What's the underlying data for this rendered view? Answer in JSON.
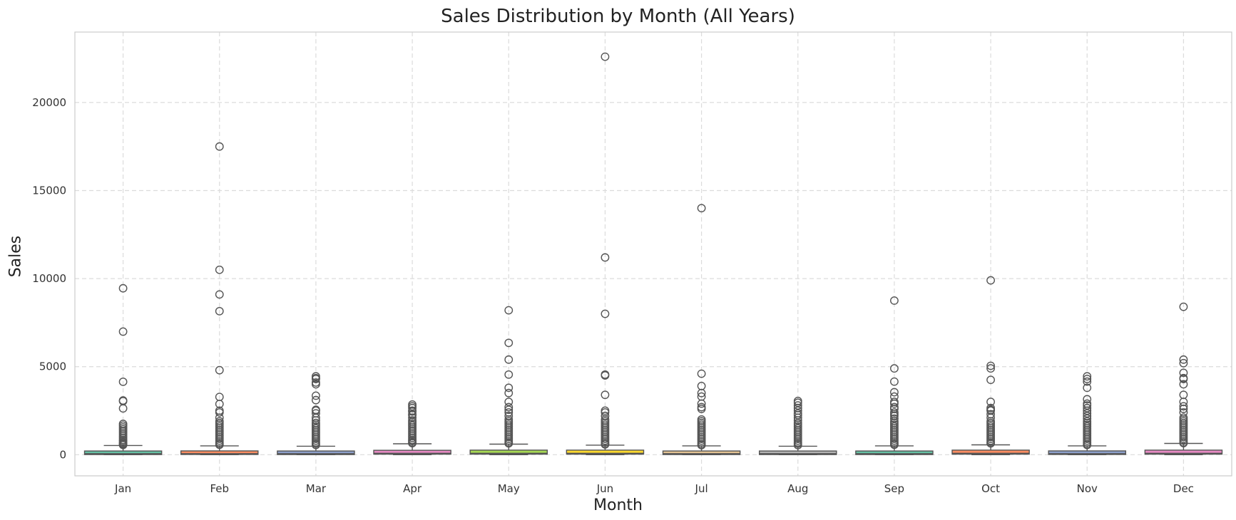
{
  "chart_data": {
    "type": "box",
    "title": "Sales Distribution by Month (All Years)",
    "xlabel": "Month",
    "ylabel": "Sales",
    "ylim": [
      -1200,
      24000
    ],
    "yticks": [
      0,
      5000,
      10000,
      15000,
      20000
    ],
    "grid": true,
    "categories": [
      "Jan",
      "Feb",
      "Mar",
      "Apr",
      "May",
      "Jun",
      "Jul",
      "Aug",
      "Sep",
      "Oct",
      "Nov",
      "Dec"
    ],
    "colors": [
      "#66c2a5",
      "#fc8d62",
      "#8da0cb",
      "#e78ac3",
      "#a6d854",
      "#ffd92f",
      "#e5c494",
      "#b3b3b3",
      "#66c2a5",
      "#fc8d62",
      "#8da0cb",
      "#e78ac3"
    ],
    "boxes": [
      {
        "q1": 20,
        "median": 60,
        "q3": 200,
        "whisker_low": 0,
        "whisker_high": 520,
        "outliers": [
          9450,
          6990,
          4140,
          3080,
          3040,
          2630,
          1750,
          1650,
          1550,
          1450,
          1350,
          1250,
          1150,
          1050,
          950,
          850,
          780,
          700,
          640,
          590,
          550
        ]
      },
      {
        "q1": 20,
        "median": 60,
        "q3": 210,
        "whisker_low": 0,
        "whisker_high": 500,
        "outliers": [
          17500,
          10500,
          9100,
          8150,
          4800,
          3280,
          2880,
          2500,
          2400,
          2100,
          1900,
          1800,
          1700,
          1600,
          1500,
          1400,
          1300,
          1200,
          1100,
          1000,
          900,
          800,
          700,
          620,
          560
        ]
      },
      {
        "q1": 20,
        "median": 60,
        "q3": 200,
        "whisker_low": 0,
        "whisker_high": 480,
        "outliers": [
          4450,
          4350,
          4300,
          4100,
          4000,
          3350,
          3100,
          2550,
          2500,
          2350,
          2100,
          1950,
          1800,
          1700,
          1600,
          1500,
          1400,
          1300,
          1200,
          1100,
          1000,
          900,
          800,
          700,
          620,
          550
        ]
      },
      {
        "q1": 30,
        "median": 80,
        "q3": 250,
        "whisker_low": 0,
        "whisker_high": 620,
        "outliers": [
          2850,
          2750,
          2650,
          2500,
          2450,
          2300,
          2250,
          2100,
          1950,
          1850,
          1750,
          1650,
          1550,
          1450,
          1350,
          1250,
          1150,
          1050,
          950,
          850,
          780,
          700,
          650
        ]
      },
      {
        "q1": 30,
        "median": 80,
        "q3": 260,
        "whisker_low": 0,
        "whisker_high": 600,
        "outliers": [
          8200,
          6350,
          5400,
          4550,
          3800,
          3500,
          3000,
          2700,
          2550,
          2400,
          2200,
          2000,
          1900,
          1800,
          1700,
          1600,
          1500,
          1400,
          1300,
          1200,
          1100,
          1000,
          900,
          800,
          700,
          640
        ]
      },
      {
        "q1": 30,
        "median": 80,
        "q3": 260,
        "whisker_low": 0,
        "whisker_high": 540,
        "outliers": [
          22600,
          11200,
          8000,
          4550,
          4500,
          3400,
          2500,
          2400,
          2200,
          2000,
          1900,
          1800,
          1700,
          1600,
          1500,
          1400,
          1300,
          1200,
          1100,
          1000,
          900,
          800,
          700,
          620,
          580
        ]
      },
      {
        "q1": 20,
        "median": 60,
        "q3": 200,
        "whisker_low": 0,
        "whisker_high": 500,
        "outliers": [
          14000,
          4600,
          3900,
          3500,
          3300,
          2900,
          2700,
          2600,
          2000,
          1900,
          1800,
          1700,
          1600,
          1500,
          1400,
          1300,
          1200,
          1100,
          1000,
          900,
          800,
          700,
          600,
          540
        ]
      },
      {
        "q1": 20,
        "median": 60,
        "q3": 200,
        "whisker_low": 0,
        "whisker_high": 480,
        "outliers": [
          3050,
          2950,
          2800,
          2650,
          2500,
          2350,
          2250,
          2100,
          1950,
          1800,
          1700,
          1600,
          1500,
          1400,
          1300,
          1200,
          1100,
          1000,
          900,
          800,
          700,
          620,
          540
        ]
      },
      {
        "q1": 20,
        "median": 60,
        "q3": 200,
        "whisker_low": 0,
        "whisker_high": 500,
        "outliers": [
          8750,
          4900,
          4150,
          3550,
          3300,
          3000,
          2900,
          2700,
          2600,
          2400,
          2300,
          2200,
          2050,
          1900,
          1800,
          1700,
          1600,
          1500,
          1400,
          1300,
          1200,
          1100,
          1000,
          900,
          800,
          700,
          620,
          560
        ]
      },
      {
        "q1": 30,
        "median": 80,
        "q3": 260,
        "whisker_low": 0,
        "whisker_high": 560,
        "outliers": [
          9900,
          5050,
          4900,
          4250,
          3000,
          2650,
          2550,
          2500,
          2300,
          2100,
          1900,
          1800,
          1700,
          1600,
          1500,
          1400,
          1300,
          1200,
          1100,
          1000,
          900,
          800,
          700,
          640
        ]
      },
      {
        "q1": 20,
        "median": 60,
        "q3": 210,
        "whisker_low": 0,
        "whisker_high": 500,
        "outliers": [
          4450,
          4300,
          4150,
          3800,
          3150,
          2900,
          2800,
          2650,
          2500,
          2350,
          2200,
          2050,
          1900,
          1800,
          1700,
          1600,
          1500,
          1400,
          1300,
          1200,
          1100,
          1000,
          900,
          800,
          700,
          600,
          550
        ]
      },
      {
        "q1": 30,
        "median": 80,
        "q3": 260,
        "whisker_low": 0,
        "whisker_high": 640,
        "outliers": [
          8400,
          5400,
          5200,
          4650,
          4350,
          4300,
          4000,
          3400,
          3000,
          2750,
          2600,
          2400,
          2100,
          2000,
          1900,
          1800,
          1700,
          1600,
          1500,
          1400,
          1300,
          1200,
          1100,
          1000,
          900,
          800,
          700,
          660
        ]
      }
    ]
  }
}
